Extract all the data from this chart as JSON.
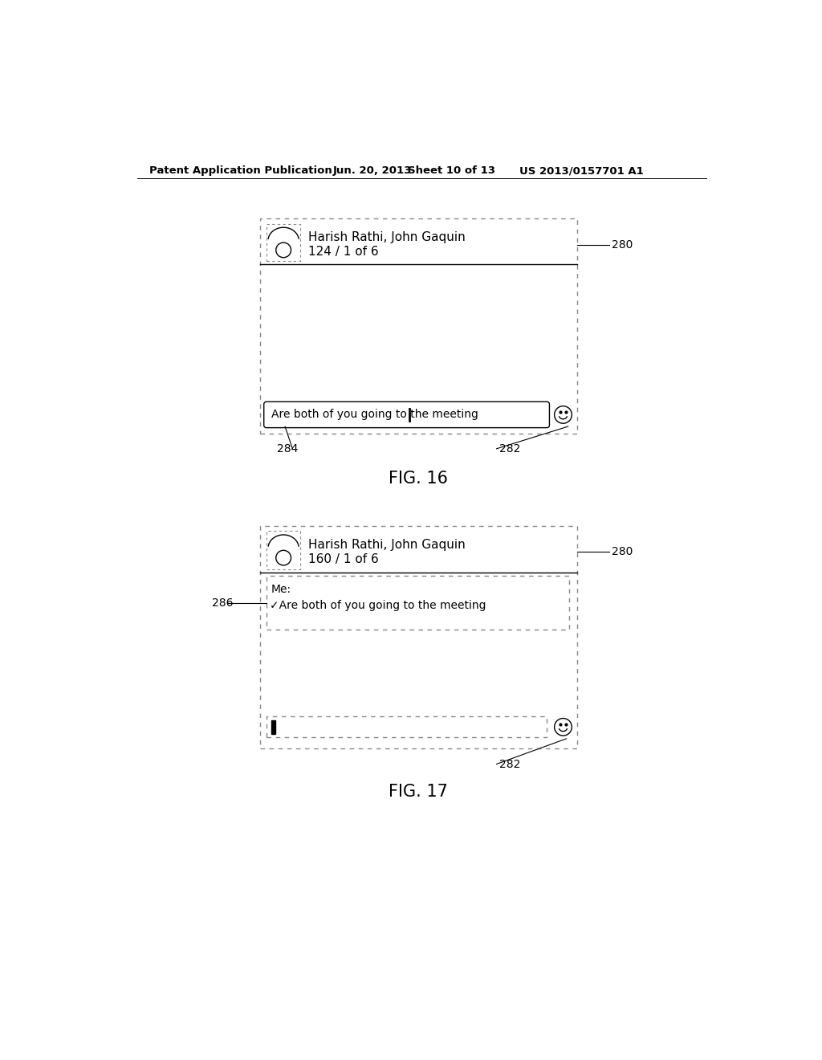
{
  "bg_color": "#ffffff",
  "header_text": "Patent Application Publication",
  "header_date": "Jun. 20, 2013",
  "header_sheet": "Sheet 10 of 13",
  "header_patent": "US 2013/0157701 A1",
  "fig16_label": "FIG. 16",
  "fig17_label": "FIG. 17",
  "fig16_ref280": "280",
  "fig16_ref282": "282",
  "fig16_ref284": "284",
  "fig17_ref280": "280",
  "fig17_ref282": "282",
  "fig17_ref286": "286",
  "fig16_name": "Harish Rathi, John Gaquin",
  "fig16_num": "124 / 1 of 6",
  "fig17_name": "Harish Rathi, John Gaquin",
  "fig17_num": "160 / 1 of 6",
  "fig16_input": "Are both of you going to the meeting",
  "fig17_msg_sender": "Me:",
  "fig17_msg_text": "✓Are both of you going to the meeting",
  "line_color": "#000000",
  "dotted_color": "#888888",
  "text_color": "#000000",
  "font_size_header": 9.5,
  "font_size_body": 10,
  "font_size_label": 15,
  "font_size_ref": 10
}
